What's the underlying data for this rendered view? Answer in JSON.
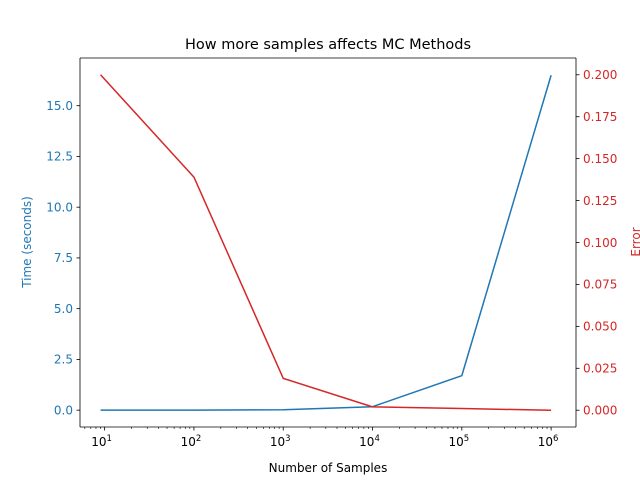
{
  "chart_data": {
    "type": "line",
    "title": "How more samples affects MC Methods",
    "xlabel": "Number of Samples",
    "xscale": "log",
    "xlim": [
      5.3,
      1900000
    ],
    "x_ticks": [
      {
        "base": "10",
        "exp": "1",
        "value": 10
      },
      {
        "base": "10",
        "exp": "2",
        "value": 100
      },
      {
        "base": "10",
        "exp": "3",
        "value": 1000
      },
      {
        "base": "10",
        "exp": "4",
        "value": 10000
      },
      {
        "base": "10",
        "exp": "5",
        "value": 100000
      },
      {
        "base": "10",
        "exp": "6",
        "value": 1000000
      }
    ],
    "y_left": {
      "label": "Time (seconds)",
      "color": "#1f77b4",
      "ylim": [
        -0.83,
        17.35
      ],
      "ticks": [
        "0.0",
        "2.5",
        "5.0",
        "7.5",
        "10.0",
        "12.5",
        "15.0"
      ],
      "tick_values": [
        0,
        2.5,
        5,
        7.5,
        10,
        12.5,
        15
      ]
    },
    "y_right": {
      "label": "Error",
      "color": "#d62728",
      "ylim": [
        -0.01,
        0.21
      ],
      "ticks": [
        "0.000",
        "0.025",
        "0.050",
        "0.075",
        "0.100",
        "0.125",
        "0.150",
        "0.175",
        "0.200"
      ],
      "tick_values": [
        0,
        0.025,
        0.05,
        0.075,
        0.1,
        0.125,
        0.15,
        0.175,
        0.2
      ]
    },
    "series": [
      {
        "axis": "left",
        "color": "#1f77b4",
        "x": [
          9,
          100,
          1000,
          10000,
          100000,
          1000000
        ],
        "values": [
          0.0,
          0.0,
          0.02,
          0.17,
          1.7,
          16.5
        ]
      },
      {
        "axis": "right",
        "color": "#d62728",
        "x": [
          9,
          100,
          1000,
          10000,
          100000,
          1000000
        ],
        "values": [
          0.2,
          0.139,
          0.019,
          0.002,
          0.001,
          0.0
        ]
      }
    ]
  }
}
